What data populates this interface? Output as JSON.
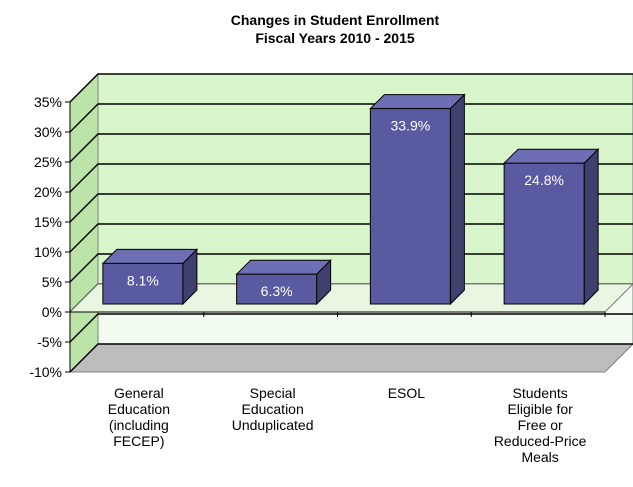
{
  "chart_data": {
    "type": "bar",
    "title": [
      "Changes in Student Enrollment",
      "Fiscal Years 2010 - 2015"
    ],
    "xlabel": "",
    "ylabel": "",
    "categories": [
      [
        "General",
        "Education",
        "(including",
        "FECEP)"
      ],
      [
        "Special",
        "Education",
        "Unduplicated"
      ],
      [
        "ESOL"
      ],
      [
        "Students",
        "Eligible for",
        "Free or",
        "Reduced-Price",
        "Meals"
      ]
    ],
    "values": [
      8.1,
      6.3,
      33.9,
      24.8
    ],
    "data_labels": [
      "8.1%",
      "6.3%",
      "33.9%",
      "24.8%"
    ],
    "ylim": [
      -10,
      35
    ],
    "yticks": [
      35,
      30,
      25,
      20,
      15,
      10,
      5,
      0,
      -5,
      -10
    ],
    "ytick_labels": [
      "35%",
      "30%",
      "25%",
      "20%",
      "15%",
      "10%",
      "5%",
      "0%",
      "-5%",
      "-10%"
    ],
    "grid": true,
    "legend": "none",
    "style": "3d",
    "colors": {
      "bar_front": "#5a5aa0",
      "bar_top": "#6e6eb4",
      "bar_side": "#40406e",
      "back_wall": "#d8f5cc",
      "side_wall": "#bde4a8",
      "floor": "#bdbdbd",
      "gridline": "#000000"
    }
  }
}
